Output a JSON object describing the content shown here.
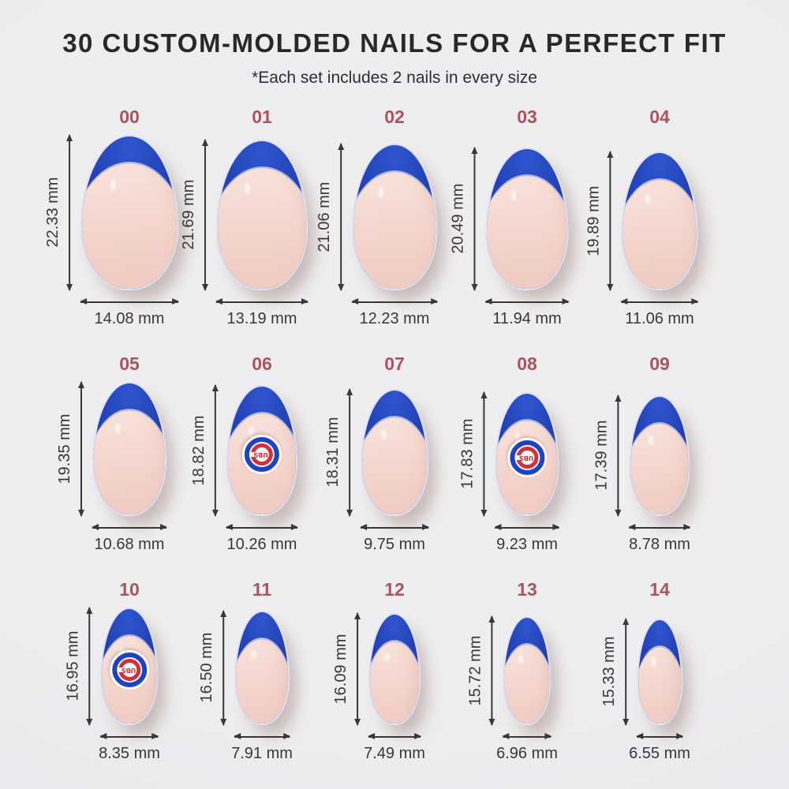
{
  "header": {
    "title": "30 CUSTOM-MOLDED NAILS FOR A PERFECT FIT",
    "subtitle": "*Each set includes 2 nails in every size"
  },
  "unit": "mm",
  "colors": {
    "background": "#eceaec",
    "title_text": "#29282b",
    "subtitle_text": "#2e2d31",
    "size_label": "#a85560",
    "measurement_text": "#39373a",
    "arrow": "#39373a",
    "nail_tip_blue": "#2342b6",
    "nail_base_nude": "#f3d2c9",
    "logo_blue": "#1e42c2",
    "logo_red": "#d2303c",
    "logo_white": "#fdfcfa"
  },
  "logo": {
    "name": "chicago-cubs-logo",
    "letters": "UBS",
    "letter_ring": "C",
    "orientation": "upside-down"
  },
  "nails": [
    {
      "size": "00",
      "height_label": "22.33 mm",
      "width_label": "14.08 mm",
      "has_logo": false
    },
    {
      "size": "01",
      "height_label": "21.69 mm",
      "width_label": "13.19 mm",
      "has_logo": false
    },
    {
      "size": "02",
      "height_label": "21.06 mm",
      "width_label": "12.23 mm",
      "has_logo": false
    },
    {
      "size": "03",
      "height_label": "20.49 mm",
      "width_label": "11.94 mm",
      "has_logo": false
    },
    {
      "size": "04",
      "height_label": "19.89 mm",
      "width_label": "11.06 mm",
      "has_logo": false
    },
    {
      "size": "05",
      "height_label": "19.35 mm",
      "width_label": "10.68 mm",
      "has_logo": false
    },
    {
      "size": "06",
      "height_label": "18.82 mm",
      "width_label": "10.26 mm",
      "has_logo": true
    },
    {
      "size": "07",
      "height_label": "18.31 mm",
      "width_label": "9.75 mm",
      "has_logo": false
    },
    {
      "size": "08",
      "height_label": "17.83 mm",
      "width_label": "9.23 mm",
      "has_logo": true
    },
    {
      "size": "09",
      "height_label": "17.39 mm",
      "width_label": "8.78 mm",
      "has_logo": false
    },
    {
      "size": "10",
      "height_label": "16.95 mm",
      "width_label": "8.35 mm",
      "has_logo": true
    },
    {
      "size": "11",
      "height_label": "16.50 mm",
      "width_label": "7.91 mm",
      "has_logo": false
    },
    {
      "size": "12",
      "height_label": "16.09 mm",
      "width_label": "7.49 mm",
      "has_logo": false
    },
    {
      "size": "13",
      "height_label": "15.72 mm",
      "width_label": "6.96 mm",
      "has_logo": false
    },
    {
      "size": "14",
      "height_label": "15.33 mm",
      "width_label": "6.55 mm",
      "has_logo": false
    }
  ]
}
